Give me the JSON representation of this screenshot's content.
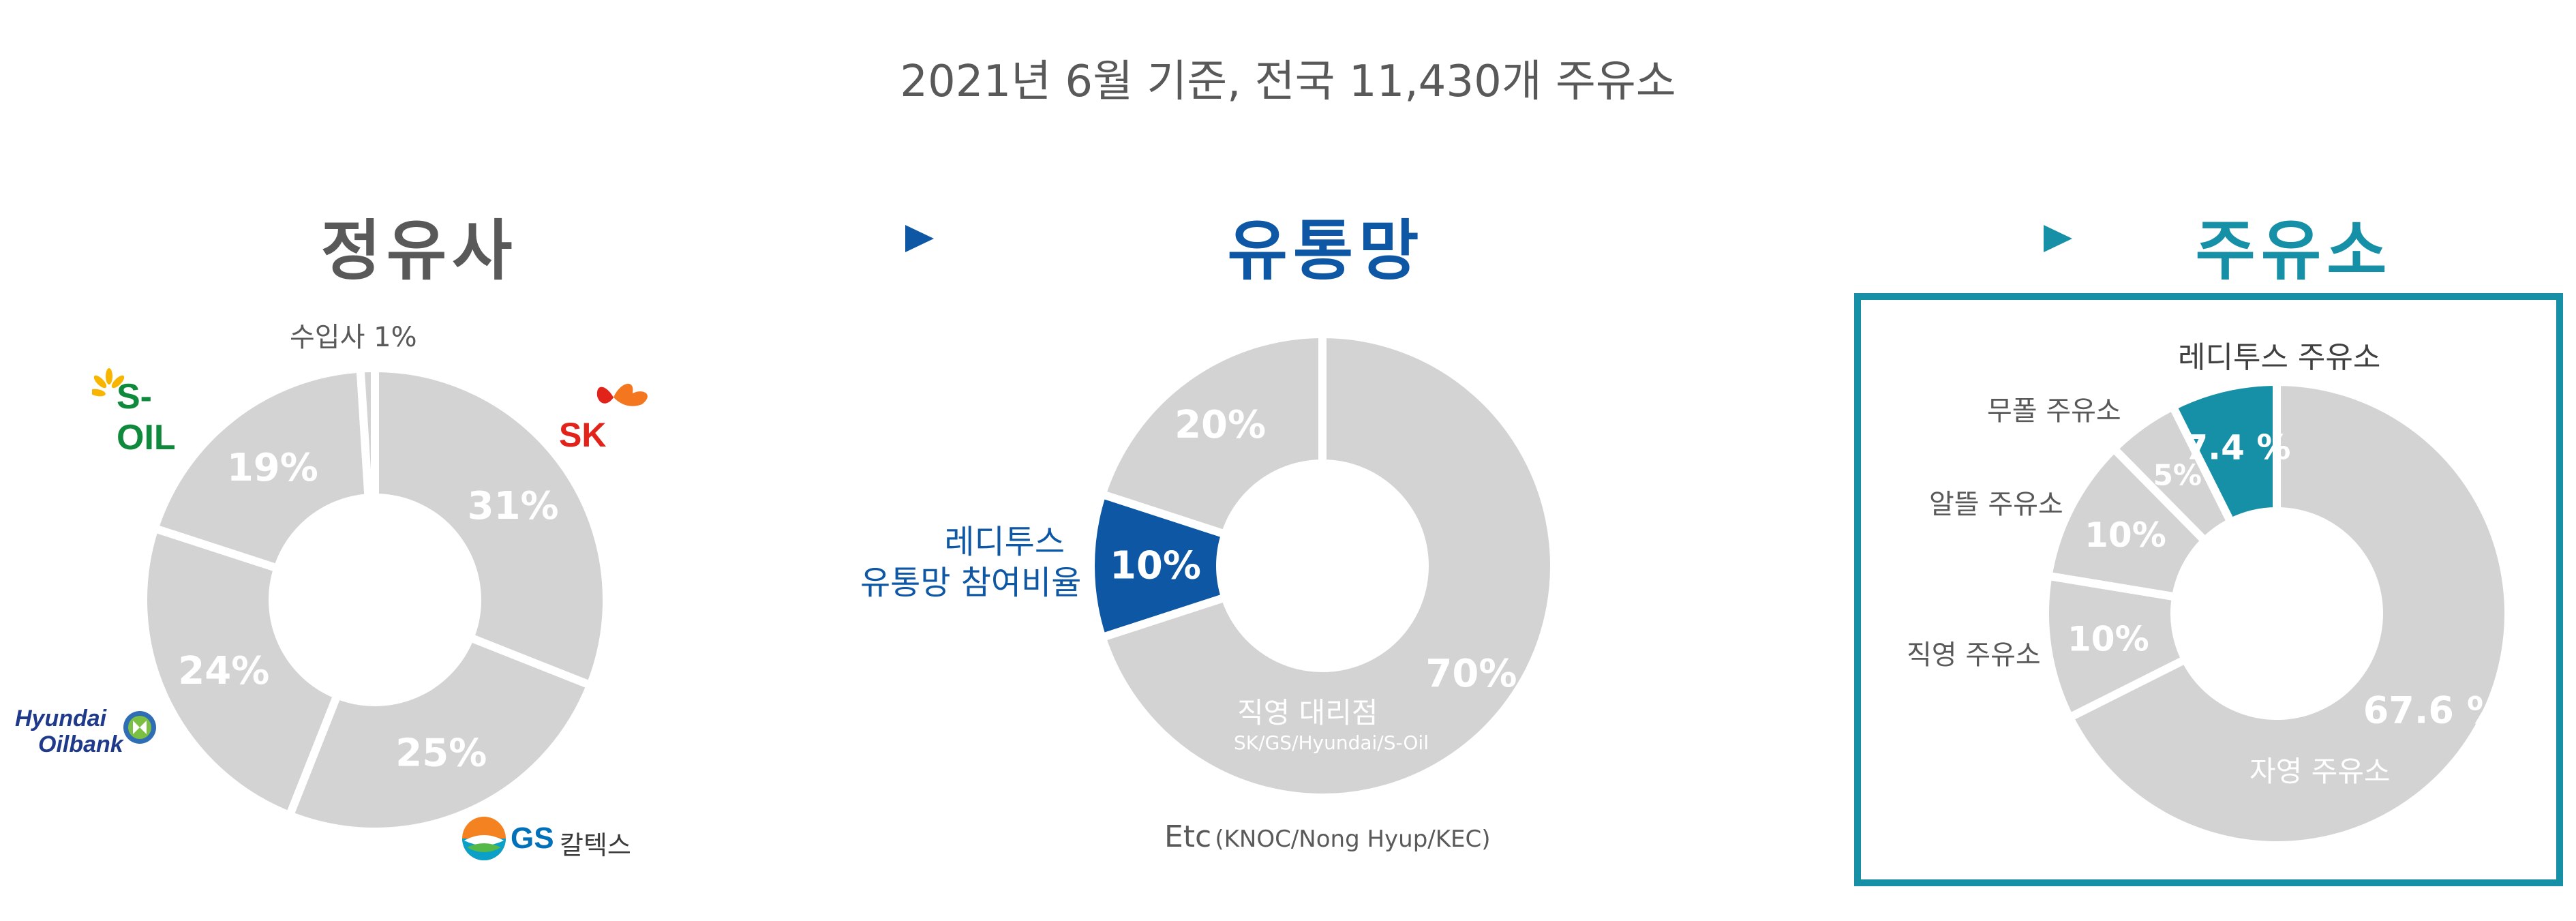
{
  "header": {
    "title": "2021년 6월 기준,  전국 11,430개 주유소"
  },
  "sections": [
    {
      "title": "정유사",
      "color": "#595959"
    },
    {
      "title": "유통망",
      "color": "#0d57a4"
    },
    {
      "title": "주유소",
      "color": "#1590a6"
    }
  ],
  "colors": {
    "slice": "#d3d3d3",
    "dark_gray": "#595959",
    "blue": "#0d57a4",
    "teal": "#1590a6"
  },
  "chart_data": [
    {
      "type": "pie",
      "name": "정유사",
      "slices": [
        {
          "label": "31%",
          "value": 31,
          "color": "#d3d3d3"
        },
        {
          "label": "25%",
          "value": 25,
          "color": "#d3d3d3"
        },
        {
          "label": "24%",
          "value": 24,
          "color": "#d3d3d3"
        },
        {
          "label": "19%",
          "value": 19,
          "color": "#d3d3d3"
        },
        {
          "label": "",
          "value": 1,
          "color": "#d3d3d3"
        }
      ],
      "annotations": {
        "importer": "수입사 1%",
        "sk": "SK",
        "soil": "S-OIL",
        "hyundai_line1": "Hyundai",
        "hyundai_line2": "Oilbank",
        "gs": "GS",
        "gs_suffix": "칼텍스"
      }
    },
    {
      "type": "pie",
      "name": "유통망",
      "slices": [
        {
          "label": "70%",
          "value": 70,
          "color": "#d3d3d3"
        },
        {
          "label": "10%",
          "value": 10,
          "color": "#0d57a4"
        },
        {
          "label": "20%",
          "value": 20,
          "color": "#d3d3d3"
        }
      ],
      "annotations": {
        "reditus_line1": "레디투스",
        "reditus_line2": "유통망 참여비율",
        "direct_label": "직영 대리점",
        "direct_sub": "SK/GS/Hyundai/S-Oil",
        "etc_main": "Etc",
        "etc_sub": "(KNOC/Nong Hyup/KEC)"
      }
    },
    {
      "type": "pie",
      "name": "주유소",
      "slices": [
        {
          "label": "67.6 %",
          "value": 67.6,
          "color": "#d3d3d3",
          "name": "자영 주유소"
        },
        {
          "label": "10%",
          "value": 10,
          "color": "#d3d3d3",
          "name": "직영 주유소"
        },
        {
          "label": "10%",
          "value": 10,
          "color": "#d3d3d3",
          "name": "알뜰 주유소"
        },
        {
          "label": "5%",
          "value": 5,
          "color": "#d3d3d3",
          "name": "무폴 주유소"
        },
        {
          "label": "7.4 %",
          "value": 7.4,
          "color": "#1590a6",
          "name": "레디투스 주유소"
        }
      ],
      "annotations": {
        "self": "자영 주유소",
        "direct": "직영 주유소",
        "altteul": "알뜰 주유소",
        "mupol": "무폴 주유소",
        "reditus": "레디투스 주유소"
      }
    }
  ]
}
